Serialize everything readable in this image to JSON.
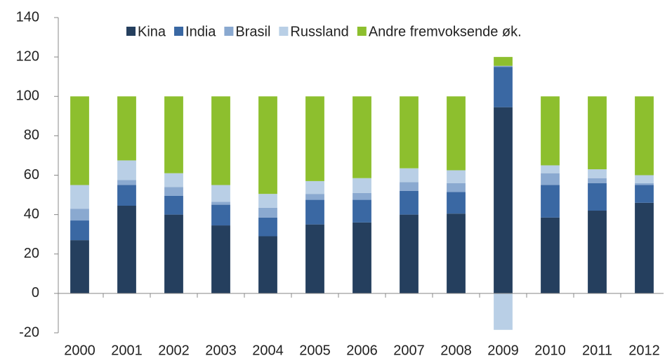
{
  "chart_data": {
    "type": "stacked_bar",
    "categories": [
      "2000",
      "2001",
      "2002",
      "2003",
      "2004",
      "2005",
      "2006",
      "2007",
      "2008",
      "2009",
      "2010",
      "2011",
      "2012"
    ],
    "series": [
      {
        "name": "Kina",
        "color": "#253f5e",
        "values": [
          27,
          44.5,
          40,
          34.5,
          29,
          35,
          36,
          40,
          40.5,
          94.5,
          38.5,
          42,
          46
        ]
      },
      {
        "name": "India",
        "color": "#3a68a3",
        "values": [
          10,
          10.5,
          9.5,
          10.5,
          9.5,
          12.5,
          11.5,
          12,
          11,
          20.5,
          16.5,
          14,
          9
        ]
      },
      {
        "name": "Brasil",
        "color": "#8aa9d0",
        "values": [
          6,
          2.5,
          4.5,
          1.5,
          5,
          3,
          3.5,
          4.5,
          4.5,
          0.5,
          6,
          2.5,
          1
        ]
      },
      {
        "name": "Russland",
        "color": "#b9cfe6",
        "values": [
          12,
          10,
          7,
          8.5,
          7,
          6.5,
          7.5,
          7,
          6.5,
          -18.5,
          4,
          4.5,
          4
        ]
      },
      {
        "name": "Andre fremvoksende øk.",
        "color": "#8dbf2e",
        "values": [
          45,
          32.5,
          39,
          45,
          49.5,
          43,
          41.5,
          36.5,
          37.5,
          4.5,
          35,
          37,
          40
        ]
      }
    ],
    "ylim": [
      -20,
      140
    ],
    "yticks": [
      -20,
      0,
      20,
      40,
      60,
      80,
      100,
      120,
      140
    ]
  }
}
